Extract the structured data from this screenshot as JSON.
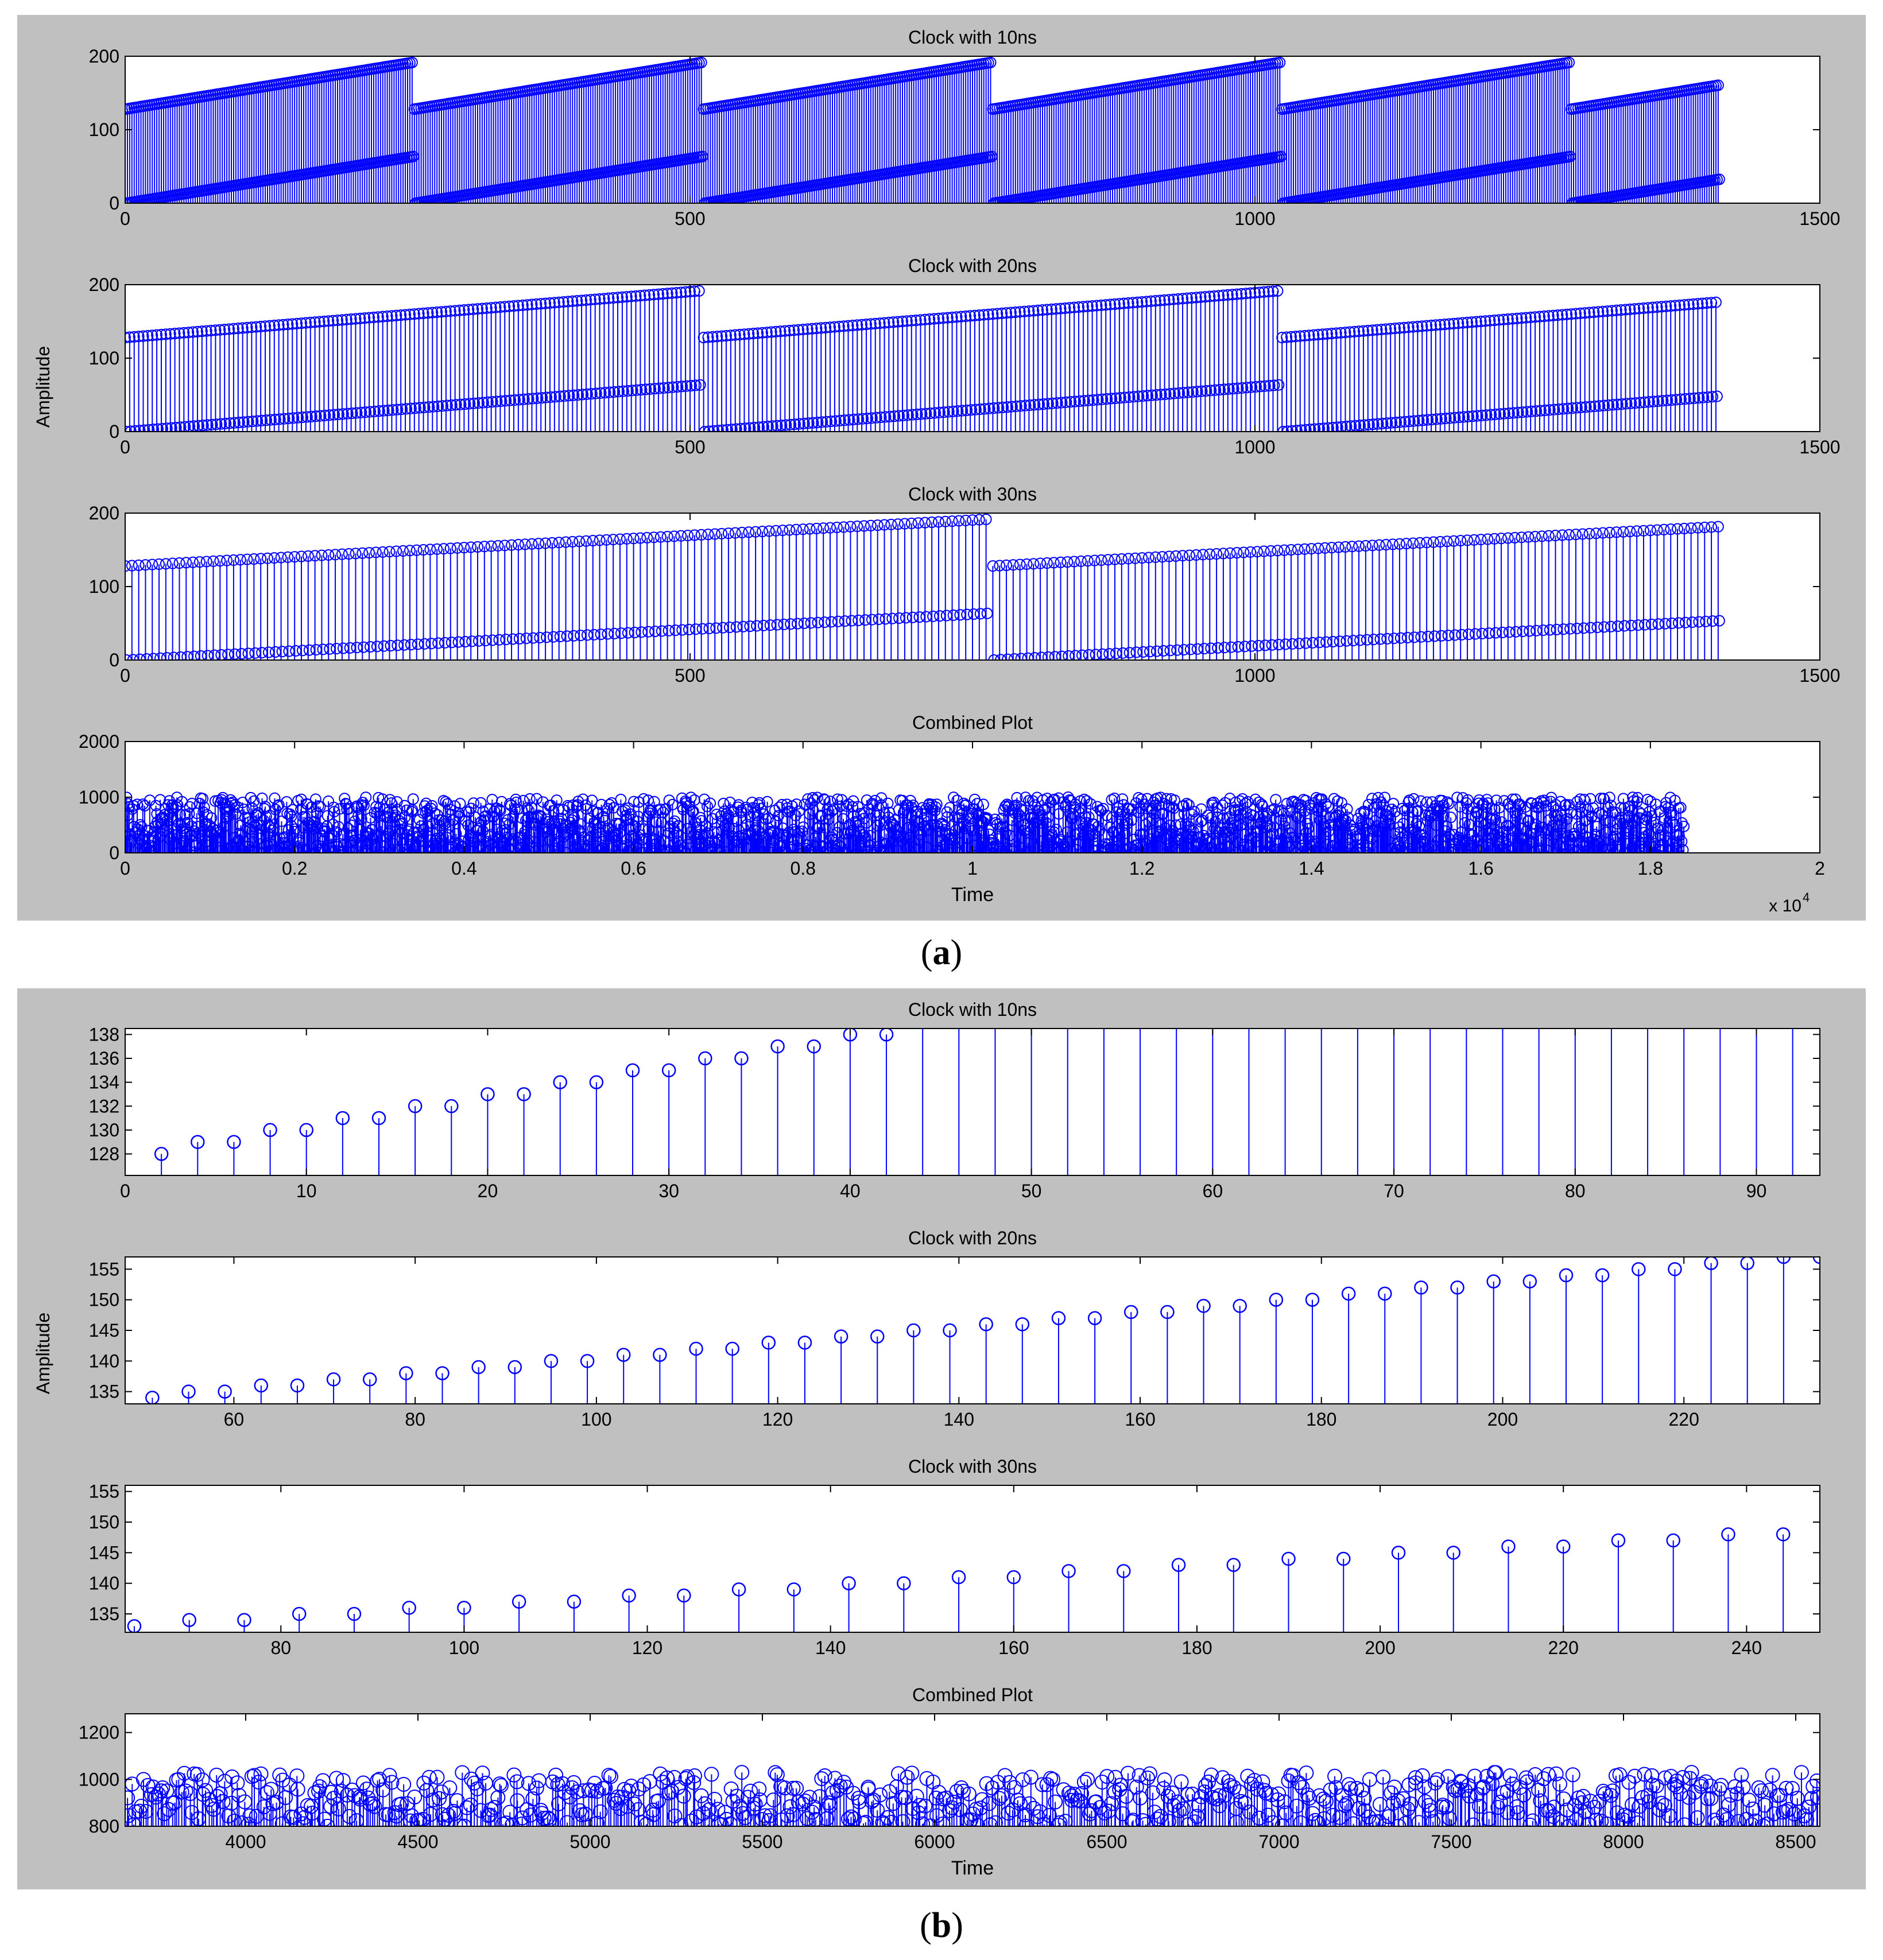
{
  "figure": {
    "label_a": "a",
    "label_b": "b",
    "ylabel": "Amplitude",
    "xlabel": "Time",
    "exponent_x": "x 10",
    "exponent_power": "4"
  },
  "colors": {
    "stem": "#0000ff",
    "panel_bg": "#c0c0c0",
    "axes_bg": "#ffffff"
  },
  "chart_data": [
    {
      "type": "scatter",
      "marker": "stem-circle",
      "panel": "a",
      "title": "Clock with 10ns",
      "xlim": [
        0,
        1500
      ],
      "ylim": [
        0,
        200
      ],
      "xticks": [
        0,
        500,
        1000,
        1500
      ],
      "yticks": [
        0,
        100,
        200
      ],
      "series": [
        {
          "pattern": "sawtooth",
          "period": 256,
          "step": 2,
          "x_end": 1410,
          "upper": [
            128,
            192
          ],
          "lower": [
            0,
            64
          ]
        }
      ]
    },
    {
      "type": "scatter",
      "marker": "stem-circle",
      "panel": "a",
      "title": "Clock with 20ns",
      "xlim": [
        0,
        1500
      ],
      "ylim": [
        0,
        200
      ],
      "xticks": [
        0,
        500,
        1000,
        1500
      ],
      "yticks": [
        0,
        100,
        200
      ],
      "series": [
        {
          "pattern": "sawtooth",
          "period": 512,
          "step": 4,
          "x_end": 1410,
          "upper": [
            128,
            192
          ],
          "lower": [
            0,
            64
          ]
        }
      ]
    },
    {
      "type": "scatter",
      "marker": "stem-circle",
      "panel": "a",
      "title": "Clock with 30ns",
      "xlim": [
        0,
        1500
      ],
      "ylim": [
        0,
        200
      ],
      "xticks": [
        0,
        500,
        1000,
        1500
      ],
      "yticks": [
        0,
        100,
        200
      ],
      "series": [
        {
          "pattern": "sawtooth",
          "period": 768,
          "step": 6,
          "x_end": 1410,
          "upper": [
            128,
            192
          ],
          "lower": [
            0,
            64
          ]
        }
      ]
    },
    {
      "type": "scatter",
      "marker": "stem-circle",
      "panel": "a",
      "title": "Combined Plot",
      "xlabel": "Time",
      "xlim": [
        0,
        20000
      ],
      "ylim": [
        0,
        2000
      ],
      "xticks": [
        0,
        2000,
        4000,
        6000,
        8000,
        10000,
        12000,
        14000,
        16000,
        18000,
        20000
      ],
      "xtick_labels": [
        "0",
        "0.2",
        "0.4",
        "0.6",
        "0.8",
        "1",
        "1.2",
        "1.4",
        "1.6",
        "1.8",
        "2"
      ],
      "yticks": [
        0,
        1000,
        2000
      ],
      "series": [
        {
          "pattern": "noise",
          "x_end": 18400,
          "range": [
            0,
            1000
          ]
        }
      ]
    },
    {
      "type": "scatter",
      "marker": "stem-circle",
      "panel": "b",
      "title": "Clock with 10ns",
      "xlim": [
        0,
        93.5
      ],
      "ylim": [
        126.2,
        138.5
      ],
      "xticks": [
        0,
        10,
        20,
        30,
        40,
        50,
        60,
        70,
        80,
        90
      ],
      "yticks": [
        128,
        130,
        132,
        134,
        136,
        138
      ],
      "points": {
        "x": [
          2,
          4,
          6,
          8,
          10,
          12,
          14,
          16,
          18,
          20,
          22,
          24,
          26,
          28,
          30,
          32,
          34,
          36,
          38,
          40,
          42
        ],
        "y": [
          128,
          129,
          129,
          130,
          130,
          131,
          131,
          132,
          132,
          133,
          133,
          134,
          134,
          135,
          135,
          136,
          136,
          137,
          137,
          138,
          138
        ]
      },
      "clipped_stems_x": [
        44,
        46,
        48,
        50,
        52,
        54,
        56,
        58,
        60,
        62,
        64,
        66,
        68,
        70,
        72,
        74,
        76,
        78,
        80,
        82,
        84,
        86,
        88,
        90,
        92
      ]
    },
    {
      "type": "scatter",
      "marker": "stem-circle",
      "panel": "b",
      "title": "Clock with 20ns",
      "ylabel": "Amplitude",
      "xlim": [
        48,
        235
      ],
      "ylim": [
        133,
        157
      ],
      "xticks": [
        60,
        80,
        100,
        120,
        140,
        160,
        180,
        200,
        220
      ],
      "yticks": [
        135,
        140,
        145,
        150,
        155
      ],
      "points": {
        "x": [
          51,
          55,
          59,
          63,
          67,
          71,
          75,
          79,
          83,
          87,
          91,
          95,
          99,
          103,
          107,
          111,
          115,
          119,
          123,
          127,
          131,
          135,
          139,
          143,
          147,
          151,
          155,
          159,
          163,
          167,
          171,
          175,
          179,
          183,
          187,
          191,
          195,
          199,
          203,
          207,
          211,
          215,
          219,
          223,
          227,
          231,
          235
        ],
        "y": [
          134,
          135,
          135,
          136,
          136,
          137,
          137,
          138,
          138,
          139,
          139,
          140,
          140,
          141,
          141,
          142,
          142,
          143,
          143,
          144,
          144,
          145,
          145,
          146,
          146,
          147,
          147,
          148,
          148,
          149,
          149,
          150,
          150,
          151,
          151,
          152,
          152,
          153,
          153,
          154,
          154,
          155,
          155,
          156,
          156,
          157,
          157
        ]
      }
    },
    {
      "type": "scatter",
      "marker": "stem-circle",
      "panel": "b",
      "title": "Clock with 30ns",
      "xlim": [
        63,
        248
      ],
      "ylim": [
        132,
        156
      ],
      "xticks": [
        80,
        100,
        120,
        140,
        160,
        180,
        200,
        220,
        240
      ],
      "yticks": [
        135,
        140,
        145,
        150,
        155
      ],
      "points": {
        "x": [
          64,
          70,
          76,
          82,
          88,
          94,
          100,
          106,
          112,
          118,
          124,
          130,
          136,
          142,
          148,
          154,
          160,
          166,
          172,
          178,
          184,
          190,
          196,
          202,
          208,
          214,
          220,
          226,
          232,
          238,
          244
        ],
        "y": [
          133,
          134,
          134,
          135,
          135,
          136,
          136,
          137,
          137,
          138,
          138,
          139,
          139,
          140,
          140,
          141,
          141,
          142,
          142,
          143,
          143,
          144,
          144,
          145,
          145,
          146,
          146,
          147,
          147,
          148,
          148
        ]
      }
    },
    {
      "type": "scatter",
      "marker": "stem-circle",
      "panel": "b",
      "title": "Combined Plot",
      "xlabel": "Time",
      "xlim": [
        3650,
        8570
      ],
      "ylim": [
        800,
        1280
      ],
      "xticks": [
        4000,
        4500,
        5000,
        5500,
        6000,
        6500,
        7000,
        7500,
        8000,
        8500
      ],
      "yticks": [
        800,
        1000,
        1200
      ],
      "series": [
        {
          "pattern": "noise",
          "x_end": 8570,
          "range": [
            800,
            1030
          ]
        }
      ]
    }
  ]
}
